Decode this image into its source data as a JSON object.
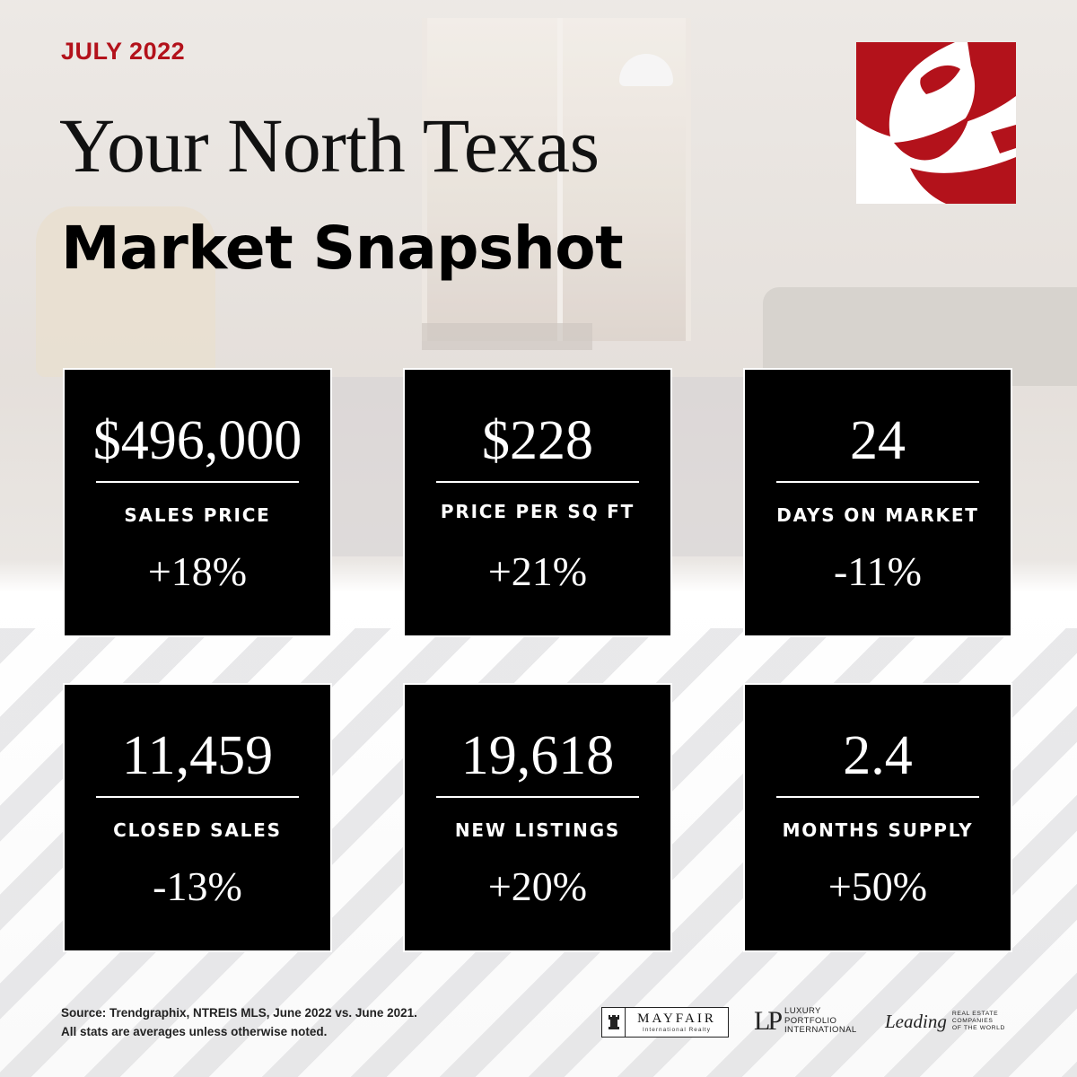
{
  "header": {
    "date": "JULY 2022",
    "title_line1": "Your North Texas",
    "title_line2": "Market Snapshot"
  },
  "colors": {
    "accent": "#b3121b",
    "card_bg": "#000000",
    "card_text": "#ffffff"
  },
  "logo": {
    "icon": "ebby-red-script-e-icon"
  },
  "stats": [
    {
      "value": "$496,000",
      "label": "SALES PRICE",
      "change": "+18%"
    },
    {
      "value": "$228",
      "label": "PRICE PER SQ FT",
      "change": "+21%"
    },
    {
      "value": "24",
      "label": "DAYS ON MARKET",
      "change": "-11%"
    },
    {
      "value": "11,459",
      "label": "CLOSED SALES",
      "change": "-13%"
    },
    {
      "value": "19,618",
      "label": "NEW LISTINGS",
      "change": "+20%"
    },
    {
      "value": "2.4",
      "label": "MONTHS SUPPLY",
      "change": "+50%"
    }
  ],
  "footer": {
    "source_line1": "Source: Trendgraphix, NTREIS MLS, June 2022 vs. June 2021.",
    "source_line2": "All stats are averages unless otherwise noted.",
    "mayfair": {
      "name": "MAYFAIR",
      "sub": "International Realty",
      "icon": "rook-icon"
    },
    "lpi": {
      "mark": "LP",
      "line1": "LUXURY",
      "line2": "PORTFOLIO",
      "line3": "INTERNATIONAL"
    },
    "leading": {
      "script": "Leading",
      "line1": "REAL ESTATE",
      "line2": "COMPANIES",
      "line3": "OF THE WORLD"
    }
  }
}
